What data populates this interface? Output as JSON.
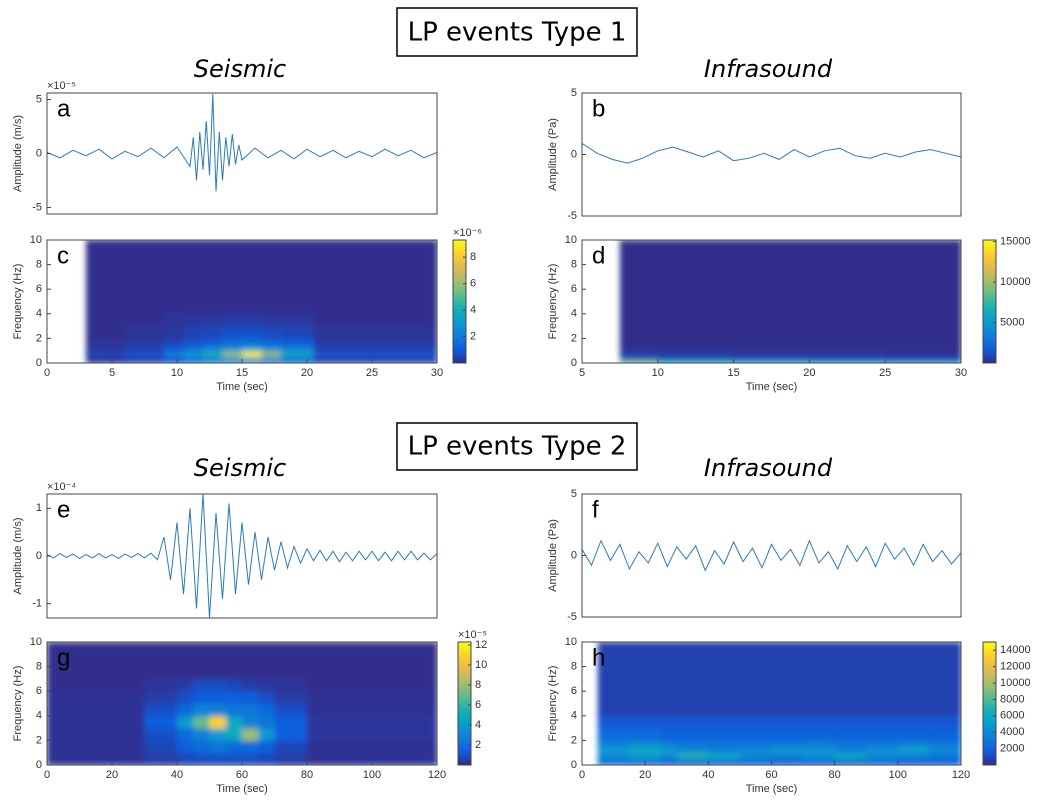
{
  "sections": [
    {
      "title": "LP events Type 1",
      "left": "Seismic",
      "right": "Infrasound"
    },
    {
      "title": "LP events Type 2",
      "left": "Seismic",
      "right": "Infrasound"
    }
  ],
  "chart_data": [
    {
      "type": "line",
      "panel_label": "a",
      "ylabel": "Amplitude (m/s)",
      "y_scale_label": "×10⁻⁵",
      "color": "#2b7bba",
      "xlim": [
        0,
        30
      ],
      "ylim": [
        -5.6,
        5.6
      ],
      "yticks": [
        -5,
        0,
        5
      ],
      "x": [
        0,
        1,
        2,
        3,
        4,
        5,
        6,
        7,
        8,
        9,
        10,
        11,
        11.25,
        11.5,
        11.75,
        12,
        12.25,
        12.5,
        12.75,
        13,
        13.25,
        13.5,
        13.75,
        14,
        14.25,
        14.5,
        14.75,
        15,
        16,
        17,
        18,
        19,
        20,
        21,
        22,
        23,
        24,
        25,
        26,
        27,
        28,
        29,
        30
      ],
      "values": [
        0.1,
        -0.4,
        0.3,
        -0.2,
        0.4,
        -0.5,
        0.2,
        -0.3,
        0.5,
        -0.4,
        0.6,
        -1.2,
        1.5,
        -2.5,
        2,
        -1.5,
        3,
        -2,
        5.5,
        -3.5,
        2,
        -2.5,
        1.5,
        -1.2,
        1.8,
        -1,
        0.8,
        -0.6,
        0.5,
        -0.4,
        0.3,
        -0.5,
        0.4,
        -0.3,
        0.3,
        -0.4,
        0.2,
        -0.3,
        0.4,
        -0.2,
        0.3,
        -0.4,
        0.1
      ]
    },
    {
      "type": "line",
      "panel_label": "b",
      "ylabel": "Amplitude (Pa)",
      "color": "#2b7bba",
      "xlim": [
        5,
        30
      ],
      "ylim": [
        -5,
        5
      ],
      "yticks": [
        -5,
        0,
        5
      ],
      "x": [
        5,
        6,
        7,
        8,
        9,
        10,
        11,
        12,
        13,
        14,
        15,
        16,
        17,
        18,
        19,
        20,
        21,
        22,
        23,
        24,
        25,
        26,
        27,
        28,
        29,
        30
      ],
      "values": [
        0.9,
        0.1,
        -0.4,
        -0.7,
        -0.3,
        0.3,
        0.6,
        0.2,
        -0.2,
        0.3,
        -0.5,
        -0.3,
        0.1,
        -0.4,
        0.4,
        -0.2,
        0.3,
        0.5,
        -0.1,
        -0.3,
        0.1,
        -0.2,
        0.2,
        0.4,
        0.1,
        -0.2
      ]
    },
    {
      "type": "heatmap",
      "panel_label": "c",
      "xlabel": "Time (sec)",
      "ylabel": "Frequency (Hz)",
      "c_scale_label": "×10⁻⁶",
      "xlim": [
        0,
        30
      ],
      "xticks": [
        0,
        5,
        10,
        15,
        20,
        25,
        30
      ],
      "ylim": [
        0,
        10
      ],
      "yticks": [
        0,
        2,
        4,
        6,
        8,
        10
      ],
      "clim": [
        0,
        9.3
      ],
      "cticks": [
        2,
        4,
        6,
        8
      ],
      "x_bins": [
        3,
        6,
        9,
        10.5,
        12,
        13.5,
        15,
        16.5,
        18,
        20.5,
        30
      ],
      "y_bins": [
        0,
        0.5,
        1,
        1.5,
        2,
        3,
        4,
        10
      ],
      "z": [
        [
          0.3,
          0.5,
          1,
          1.5,
          2,
          2.5,
          2.5,
          2,
          1.5,
          0.5
        ],
        [
          0.5,
          0.8,
          2,
          3,
          4,
          6,
          9,
          6,
          3.5,
          0.8
        ],
        [
          0.3,
          0.5,
          1,
          1.5,
          2,
          2.5,
          3,
          2.5,
          2,
          0.5
        ],
        [
          0.2,
          0.3,
          0.5,
          0.8,
          1,
          1.5,
          1.5,
          1.2,
          1,
          0.3
        ],
        [
          0.1,
          0.2,
          0.3,
          0.5,
          0.6,
          0.8,
          0.8,
          0.7,
          0.6,
          0.2
        ],
        [
          0.1,
          0.1,
          0.2,
          0.3,
          0.3,
          0.4,
          0.4,
          0.3,
          0.3,
          0.1
        ],
        [
          0.1,
          0.1,
          0.1,
          0.1,
          0.1,
          0.1,
          0.1,
          0.1,
          0.1,
          0.1
        ]
      ]
    },
    {
      "type": "heatmap",
      "panel_label": "d",
      "xlabel": "Time (sec)",
      "ylabel": "Frequency (Hz)",
      "xlim": [
        5,
        30
      ],
      "xticks": [
        5,
        10,
        15,
        20,
        25,
        30
      ],
      "ylim": [
        0,
        10
      ],
      "yticks": [
        0,
        2,
        4,
        6,
        8,
        10
      ],
      "clim": [
        0,
        15200
      ],
      "cticks": [
        5000,
        10000,
        15000
      ],
      "x_bins": [
        7.5,
        10,
        15,
        20,
        25,
        30
      ],
      "y_bins": [
        0,
        0.3,
        1,
        10
      ],
      "z": [
        [
          9000,
          6000,
          5000,
          4500,
          4000
        ],
        [
          800,
          600,
          500,
          500,
          400
        ],
        [
          100,
          100,
          100,
          100,
          100
        ]
      ]
    },
    {
      "type": "line",
      "panel_label": "e",
      "ylabel": "Amplitude (m/s)",
      "y_scale_label": "×10⁻⁴",
      "color": "#2b7bba",
      "xlim": [
        0,
        120
      ],
      "ylim": [
        -1.3,
        1.3
      ],
      "yticks": [
        -1,
        0,
        1
      ],
      "x": [
        0,
        2,
        4,
        6,
        8,
        10,
        12,
        14,
        16,
        18,
        20,
        22,
        24,
        26,
        28,
        30,
        32,
        34,
        36,
        38,
        40,
        42,
        44,
        46,
        48,
        50,
        52,
        54,
        56,
        58,
        60,
        62,
        64,
        66,
        68,
        70,
        72,
        74,
        76,
        78,
        80,
        82,
        84,
        86,
        88,
        90,
        92,
        94,
        96,
        98,
        100,
        102,
        104,
        106,
        108,
        110,
        112,
        114,
        116,
        118,
        120
      ],
      "values": [
        0.03,
        -0.04,
        0.05,
        -0.03,
        0.04,
        -0.05,
        0.03,
        -0.04,
        0.05,
        -0.04,
        0.03,
        -0.05,
        0.04,
        -0.03,
        0.05,
        -0.04,
        0.06,
        -0.08,
        0.4,
        -0.5,
        0.7,
        -0.8,
        1.0,
        -1.1,
        1.3,
        -1.3,
        0.9,
        -0.9,
        1.1,
        -0.8,
        0.7,
        -0.6,
        0.5,
        -0.5,
        0.4,
        -0.3,
        0.3,
        -0.25,
        0.2,
        -0.15,
        0.15,
        -0.1,
        0.12,
        -0.1,
        0.1,
        -0.12,
        0.08,
        -0.1,
        0.1,
        -0.08,
        0.1,
        -0.1,
        0.08,
        -0.1,
        0.1,
        -0.08,
        0.1,
        -0.08,
        0.06,
        -0.08,
        0.05
      ]
    },
    {
      "type": "line",
      "panel_label": "f",
      "ylabel": "Amplitude (Pa)",
      "color": "#2b7bba",
      "xlim": [
        0,
        120
      ],
      "ylim": [
        -5,
        5
      ],
      "yticks": [
        -5,
        0,
        5
      ],
      "x": [
        0,
        3,
        6,
        9,
        12,
        15,
        18,
        21,
        24,
        27,
        30,
        33,
        36,
        39,
        42,
        45,
        48,
        51,
        54,
        57,
        60,
        63,
        66,
        69,
        72,
        75,
        78,
        81,
        84,
        87,
        90,
        93,
        96,
        99,
        102,
        105,
        108,
        111,
        114,
        117,
        120
      ],
      "values": [
        0.5,
        -0.8,
        1.2,
        -0.4,
        0.9,
        -1.1,
        0.3,
        -0.6,
        1.0,
        -0.9,
        0.7,
        -0.3,
        0.8,
        -1.2,
        0.4,
        -0.7,
        1.1,
        -0.5,
        0.6,
        -1.0,
        0.9,
        -0.4,
        0.5,
        -0.8,
        1.2,
        -0.6,
        0.3,
        -1.1,
        0.8,
        -0.5,
        0.7,
        -0.9,
        1.0,
        -0.3,
        0.6,
        -0.8,
        0.9,
        -0.5,
        0.4,
        -0.7,
        0.2
      ]
    },
    {
      "type": "heatmap",
      "panel_label": "g",
      "xlabel": "Time (sec)",
      "ylabel": "Frequency (Hz)",
      "c_scale_label": "×10⁻⁵",
      "xlim": [
        0,
        120
      ],
      "xticks": [
        0,
        20,
        40,
        60,
        80,
        100,
        120
      ],
      "ylim": [
        0,
        10
      ],
      "yticks": [
        0,
        2,
        4,
        6,
        8,
        10
      ],
      "clim": [
        0,
        12.3
      ],
      "cticks": [
        2,
        4,
        6,
        8,
        10,
        12
      ],
      "x_bins": [
        0,
        30,
        40,
        45,
        50,
        55,
        60,
        65,
        70,
        80,
        120
      ],
      "y_bins": [
        0,
        1,
        2,
        3,
        4,
        5,
        6,
        7,
        10
      ],
      "z": [
        [
          0.2,
          0.5,
          0.8,
          1,
          1,
          1,
          1,
          0.8,
          0.5,
          0.2
        ],
        [
          0.2,
          0.8,
          1.5,
          2,
          2.5,
          2,
          2,
          1.5,
          0.8,
          0.2
        ],
        [
          0.2,
          1,
          2,
          3,
          4,
          5,
          8,
          4,
          1.5,
          0.3
        ],
        [
          0.2,
          1.5,
          4,
          7,
          11,
          5,
          3,
          2.5,
          1.5,
          0.3
        ],
        [
          0.2,
          1,
          2,
          3,
          3,
          2.5,
          2.5,
          2,
          1,
          0.2
        ],
        [
          0.2,
          0.5,
          1,
          1.5,
          1.5,
          1.5,
          1.5,
          1,
          0.5,
          0.2
        ],
        [
          0.1,
          0.3,
          0.5,
          1,
          1,
          0.8,
          0.5,
          0.4,
          0.3,
          0.1
        ],
        [
          0.1,
          0.1,
          0.1,
          0.1,
          0.1,
          0.1,
          0.1,
          0.1,
          0.1,
          0.1
        ]
      ]
    },
    {
      "type": "heatmap",
      "panel_label": "h",
      "xlabel": "Time (sec)",
      "ylabel": "Frequency (Hz)",
      "xlim": [
        0,
        120
      ],
      "xticks": [
        0,
        20,
        40,
        60,
        80,
        100,
        120
      ],
      "ylim": [
        0,
        10
      ],
      "yticks": [
        0,
        2,
        4,
        6,
        8,
        10
      ],
      "clim": [
        0,
        15000
      ],
      "cticks": [
        2000,
        4000,
        6000,
        8000,
        10000,
        12000,
        14000
      ],
      "x_bins": [
        5,
        15,
        25,
        30,
        40,
        50,
        60,
        70,
        80,
        90,
        100,
        110,
        120
      ],
      "y_bins": [
        0,
        0.5,
        1,
        1.5,
        2,
        3,
        4,
        10
      ],
      "z": [
        [
          2500,
          2500,
          2000,
          2000,
          2000,
          2000,
          2000,
          2000,
          2000,
          2000,
          2000,
          2000
        ],
        [
          4000,
          5000,
          4000,
          7000,
          6000,
          4000,
          3500,
          4500,
          6000,
          4000,
          3500,
          3000
        ],
        [
          5000,
          6000,
          5000,
          4000,
          3500,
          4000,
          5000,
          4500,
          3500,
          4500,
          5500,
          4000
        ],
        [
          3500,
          4000,
          3500,
          3000,
          3000,
          3000,
          3000,
          3500,
          3000,
          3000,
          3500,
          3000
        ],
        [
          2500,
          2500,
          2000,
          2000,
          2000,
          2000,
          2000,
          2000,
          2000,
          2000,
          2000,
          2000
        ],
        [
          1500,
          1500,
          1500,
          1500,
          1500,
          1500,
          1500,
          1500,
          1500,
          1500,
          1500,
          1500
        ],
        [
          800,
          800,
          800,
          800,
          800,
          800,
          800,
          800,
          800,
          800,
          800,
          800
        ]
      ]
    }
  ]
}
